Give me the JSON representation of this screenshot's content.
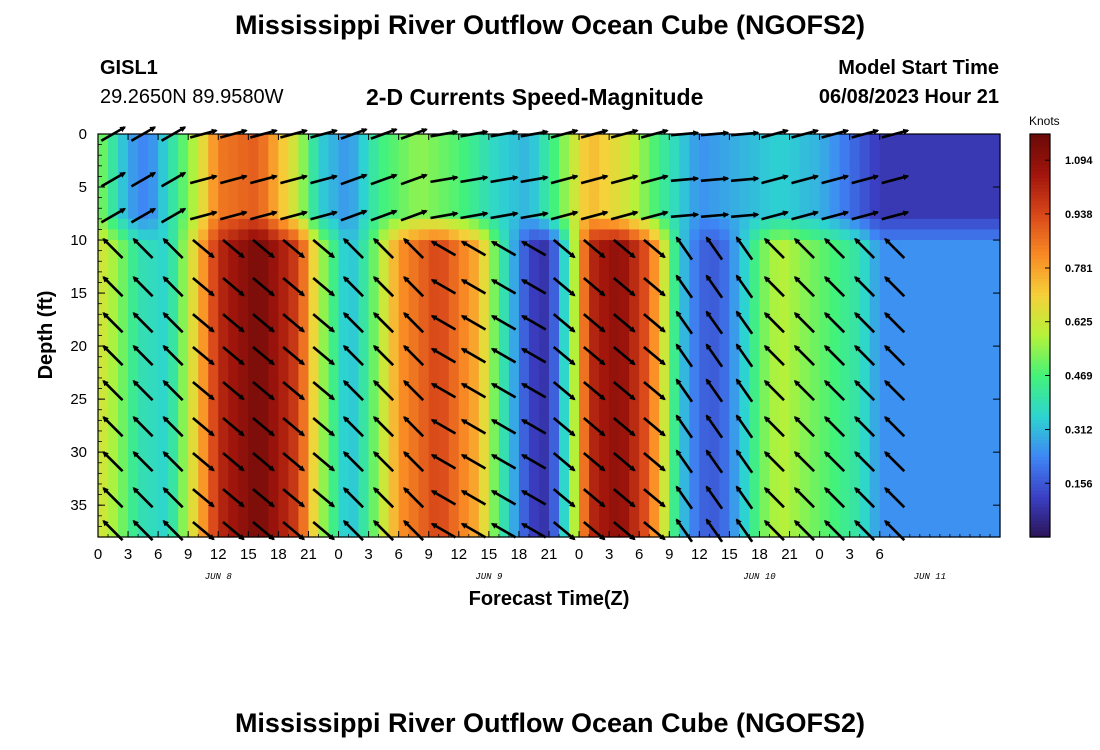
{
  "page": {
    "title": "Mississippi River Outflow Ocean Cube (NGOFS2)",
    "title_repeat": "Mississippi River Outflow Ocean Cube (NGOFS2)",
    "station_id": "GISL1",
    "station_coords": "29.2650N  89.9580W",
    "subtitle": "2-D Currents Speed-Magnitude",
    "model_start_label": "Model Start Time",
    "model_start_value": "06/08/2023 Hour 21",
    "colorbar_units": "Knots"
  },
  "chart_data": {
    "type": "heatmap",
    "title": "2-D Currents Speed-Magnitude",
    "xlabel": "Forecast Time(Z)",
    "ylabel": "Depth (ft)",
    "x_range_hours": [
      0,
      90
    ],
    "y_range_ft": [
      0,
      38
    ],
    "y_reversed": true,
    "x_tick_labels": [
      "0",
      "3",
      "6",
      "9",
      "12",
      "15",
      "18",
      "21",
      "0",
      "3",
      "6",
      "9",
      "12",
      "15",
      "18",
      "21",
      "0",
      "3",
      "6",
      "9",
      "12",
      "15",
      "18",
      "21",
      "0",
      "3",
      "6"
    ],
    "x_tick_hours": [
      0,
      3,
      6,
      9,
      12,
      15,
      18,
      21,
      24,
      27,
      30,
      33,
      36,
      39,
      42,
      45,
      48,
      51,
      54,
      57,
      60,
      63,
      66,
      69,
      72,
      75,
      78
    ],
    "x_tick_offset_hours": 0,
    "day_labels": [
      {
        "label": "JUN 8",
        "hour": 12
      },
      {
        "label": "JUN 9",
        "hour": 39
      },
      {
        "label": "JUN 10",
        "hour": 66
      },
      {
        "label": "JUN 11",
        "hour": 83
      }
    ],
    "y_ticks": [
      0,
      5,
      10,
      15,
      20,
      25,
      30,
      35
    ],
    "colorbar": {
      "min": 0,
      "max": 1.17,
      "ticks": [
        0.156,
        0.312,
        0.469,
        0.625,
        0.781,
        0.938,
        1.094
      ],
      "colors": [
        "#2b1456",
        "#3b3fc4",
        "#3f86f5",
        "#2dd4d0",
        "#43f27a",
        "#b4f23a",
        "#f5d13a",
        "#f98b25",
        "#d9481a",
        "#a1150c",
        "#6b0a08"
      ]
    },
    "legend": "colorbar right",
    "grid": false,
    "surface_speed_by_hour": [
      {
        "hour": 0,
        "speed": 0.55
      },
      {
        "hour": 3,
        "speed": 0.28
      },
      {
        "hour": 5,
        "speed": 0.22
      },
      {
        "hour": 8,
        "speed": 0.45
      },
      {
        "hour": 10,
        "speed": 0.62
      },
      {
        "hour": 12,
        "speed": 0.85
      },
      {
        "hour": 16,
        "speed": 0.9
      },
      {
        "hour": 20,
        "speed": 0.6
      },
      {
        "hour": 22,
        "speed": 0.35
      },
      {
        "hour": 25,
        "speed": 0.25
      },
      {
        "hour": 28,
        "speed": 0.45
      },
      {
        "hour": 32,
        "speed": 0.55
      },
      {
        "hour": 36,
        "speed": 0.48
      },
      {
        "hour": 40,
        "speed": 0.35
      },
      {
        "hour": 43,
        "speed": 0.3
      },
      {
        "hour": 46,
        "speed": 0.5
      },
      {
        "hour": 49,
        "speed": 0.75
      },
      {
        "hour": 53,
        "speed": 0.62
      },
      {
        "hour": 56,
        "speed": 0.45
      },
      {
        "hour": 60,
        "speed": 0.25
      },
      {
        "hour": 64,
        "speed": 0.3
      },
      {
        "hour": 68,
        "speed": 0.35
      },
      {
        "hour": 72,
        "speed": 0.3
      },
      {
        "hour": 75,
        "speed": 0.2
      },
      {
        "hour": 78,
        "speed": 0.1
      }
    ],
    "deep_speed_by_hour": [
      {
        "hour": 0,
        "speed": 0.65
      },
      {
        "hour": 2,
        "speed": 0.55
      },
      {
        "hour": 4,
        "speed": 0.4
      },
      {
        "hour": 7,
        "speed": 0.35
      },
      {
        "hour": 9,
        "speed": 0.6
      },
      {
        "hour": 12,
        "speed": 1.0
      },
      {
        "hour": 16,
        "speed": 1.15
      },
      {
        "hour": 20,
        "speed": 0.95
      },
      {
        "hour": 22,
        "speed": 0.6
      },
      {
        "hour": 25,
        "speed": 0.3
      },
      {
        "hour": 27,
        "speed": 0.45
      },
      {
        "hour": 30,
        "speed": 0.8
      },
      {
        "hour": 34,
        "speed": 0.95
      },
      {
        "hour": 38,
        "speed": 0.75
      },
      {
        "hour": 40,
        "speed": 0.45
      },
      {
        "hour": 43,
        "speed": 0.12
      },
      {
        "hour": 45,
        "speed": 0.08
      },
      {
        "hour": 47,
        "speed": 0.45
      },
      {
        "hour": 49,
        "speed": 1.0
      },
      {
        "hour": 52,
        "speed": 1.1
      },
      {
        "hour": 55,
        "speed": 0.9
      },
      {
        "hour": 58,
        "speed": 0.35
      },
      {
        "hour": 60,
        "speed": 0.18
      },
      {
        "hour": 62,
        "speed": 0.16
      },
      {
        "hour": 64,
        "speed": 0.3
      },
      {
        "hour": 66,
        "speed": 0.5
      },
      {
        "hour": 68,
        "speed": 0.6
      },
      {
        "hour": 70,
        "speed": 0.55
      },
      {
        "hour": 73,
        "speed": 0.48
      },
      {
        "hour": 76,
        "speed": 0.4
      },
      {
        "hour": 78,
        "speed": 0.25
      }
    ],
    "vector_rows_ft": [
      0,
      4.3,
      7.7,
      10.8,
      14.4,
      17.8,
      20.9,
      24.2,
      27.6,
      30.9,
      34.3,
      37.4
    ],
    "vector_columns_hours": [
      0,
      3,
      6,
      9,
      12,
      15,
      18,
      21,
      24,
      27,
      30,
      33,
      36,
      39,
      42,
      45,
      48,
      51,
      54,
      57,
      60,
      63,
      66,
      69,
      72,
      75,
      78
    ],
    "vector_direction_regimes": [
      {
        "hours": [
          0,
          9
        ],
        "surface_deg": 30,
        "deep_deg": 135
      },
      {
        "hours": [
          9,
          22
        ],
        "surface_deg": 15,
        "deep_deg": -40
      },
      {
        "hours": [
          22,
          33
        ],
        "surface_deg": 20,
        "deep_deg": 135
      },
      {
        "hours": [
          33,
          45
        ],
        "surface_deg": 10,
        "deep_deg": 150
      },
      {
        "hours": [
          45,
          57
        ],
        "surface_deg": 15,
        "deep_deg": -40
      },
      {
        "hours": [
          57,
          66
        ],
        "surface_deg": 5,
        "deep_deg": 125
      },
      {
        "hours": [
          66,
          78
        ],
        "surface_deg": 15,
        "deep_deg": 135
      }
    ]
  }
}
